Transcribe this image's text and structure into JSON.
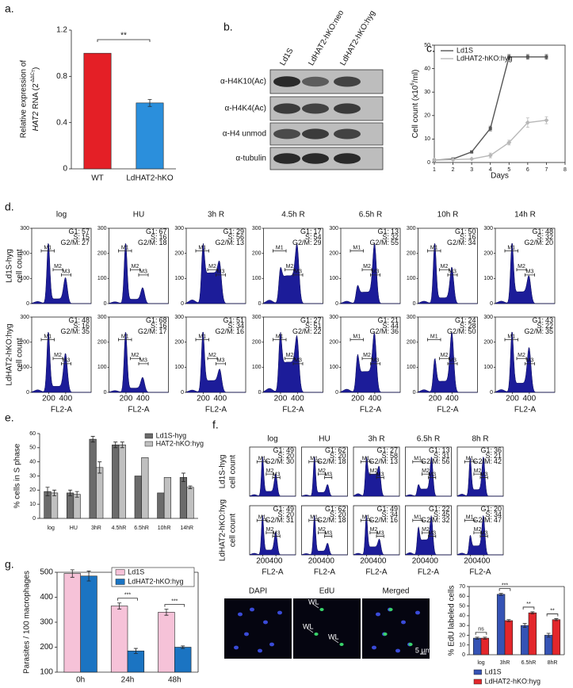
{
  "chart_data": [
    {
      "type": "bar",
      "label": "a.",
      "ylabel": [
        "Relative expression of",
        "HAT2",
        "RNA (2",
        "-ΔΔC",
        "T",
        ")"
      ],
      "categories": [
        "WT",
        "LdHAT2-hKO"
      ],
      "values": [
        1.0,
        0.57
      ],
      "errors": [
        0,
        0.03
      ],
      "colors": [
        "#e41f26",
        "#2b8fdc"
      ],
      "ylim": [
        0,
        1.2
      ],
      "yticks": [
        0,
        0.4,
        0.8,
        1.2
      ],
      "significance": "**"
    },
    {
      "type": "line",
      "label": "c.",
      "ylabel": [
        "Cell count (x10",
        "6",
        "/ml)"
      ],
      "xlabel": "Days",
      "x": [
        1,
        2,
        3,
        4,
        5,
        6,
        7
      ],
      "series": [
        {
          "name": "Ld1S",
          "color": "#555555",
          "values": [
            1,
            1.5,
            4.5,
            14.5,
            45,
            45,
            45
          ],
          "errors": [
            0,
            0,
            0,
            1,
            1,
            1,
            1
          ]
        },
        {
          "name": "LdHAT2-hKO:hyg",
          "color": "#b8b8b8",
          "values": [
            1,
            1.2,
            1.5,
            3,
            8.5,
            17,
            18
          ],
          "errors": [
            0,
            0,
            0,
            1,
            1,
            2,
            1.5
          ]
        }
      ],
      "xlim": [
        1,
        8
      ],
      "xticks": [
        1,
        2,
        3,
        4,
        5,
        6,
        7,
        8
      ],
      "ylim": [
        0,
        50
      ],
      "yticks": [
        0,
        10,
        20,
        30,
        40,
        50
      ]
    },
    {
      "type": "bar",
      "label": "e.",
      "ylabel": "% cells in S phase",
      "categories": [
        "log",
        "HU",
        "3hR",
        "4.5hR",
        "6.5hR",
        "10hR",
        "14hR"
      ],
      "series": [
        {
          "name": "Ld1S-hyg",
          "color": "#6b6b6b",
          "values": [
            19,
            18,
            56,
            52,
            30,
            18,
            29
          ],
          "errors": [
            3,
            2,
            2,
            2,
            0,
            0,
            3
          ]
        },
        {
          "name": "HAT2-hKO:hyg",
          "color": "#c0c0c0",
          "values": [
            18,
            17,
            36,
            52,
            43,
            29,
            22
          ],
          "errors": [
            2,
            2,
            4,
            2,
            0,
            0,
            1
          ]
        }
      ],
      "ylim": [
        0,
        60
      ],
      "yticks": [
        0,
        10,
        20,
        30,
        40,
        50,
        60
      ]
    },
    {
      "type": "bar",
      "label": "g.",
      "ylabel": "Parasites / 100 macrophages",
      "categories": [
        "0h",
        "24h",
        "48h"
      ],
      "series": [
        {
          "name": "Ld1S",
          "color": "#f6c2d8",
          "values": [
            495,
            365,
            340
          ],
          "errors": [
            15,
            12,
            12
          ]
        },
        {
          "name": "LdHAT2-hKO:hyg",
          "color": "#1b74c2",
          "values": [
            485,
            185,
            200
          ],
          "errors": [
            20,
            10,
            5
          ]
        }
      ],
      "ylim": [
        100,
        500
      ],
      "yticks": [
        100,
        200,
        300,
        400,
        500
      ],
      "significance": [
        null,
        "***",
        "***"
      ]
    },
    {
      "type": "bar",
      "ylabel": "% EdU labeled cells",
      "categories": [
        "log",
        "3hR",
        "6.5hR",
        "8hR"
      ],
      "series": [
        {
          "name": "Ld1S",
          "color": "#3553b5",
          "values": [
            17,
            62,
            30,
            20
          ],
          "errors": [
            1,
            1,
            2,
            2
          ]
        },
        {
          "name": "LdHAT2-hKO:hyg",
          "color": "#e3262b",
          "values": [
            17,
            35,
            43,
            36
          ],
          "errors": [
            1,
            1,
            1,
            1
          ]
        }
      ],
      "ylim": [
        0,
        70
      ],
      "yticks": [
        0,
        10,
        20,
        30,
        40,
        50,
        60,
        70
      ],
      "significance": [
        "ns",
        "***",
        "**",
        "**"
      ]
    }
  ],
  "blot": {
    "label": "b.",
    "lanes": [
      "Ld1S",
      "LdHAT2-hKO:neo",
      "LdHAT2-hKO:hyg"
    ],
    "antibodies": [
      "α-H4K10(Ac)",
      "α-H4K4(Ac)",
      "α-H4 unmod",
      "α-tubulin"
    ]
  },
  "flow_labels": {
    "phases": [
      "G1:",
      "S:",
      "G2/M:"
    ],
    "gates": [
      "M1",
      "M2",
      "M3"
    ],
    "xlabel": "FL2-A"
  },
  "flow_d": {
    "label": "d.",
    "columns": [
      "log",
      "HU",
      "3h R",
      "4.5h R",
      "6.5h R",
      "10h R",
      "14h R"
    ],
    "ylim": [
      0,
      300
    ],
    "yticks": [
      0,
      100,
      200,
      300
    ],
    "xlim": [
      0,
      700
    ],
    "xticks": [
      200,
      400
    ],
    "rows": [
      {
        "label": [
          "Ld1S-hyg",
          "cell count"
        ],
        "values": [
          [
            57,
            15,
            27
          ],
          [
            67,
            16,
            18
          ],
          [
            29,
            56,
            13
          ],
          [
            17,
            54,
            29
          ],
          [
            13,
            32,
            55
          ],
          [
            50,
            16,
            34
          ],
          [
            48,
            32,
            20
          ]
        ]
      },
      {
        "label": [
          "LdHAT2-hKO:hyg",
          "cell count"
        ],
        "values": [
          [
            48,
            16,
            35
          ],
          [
            68,
            16,
            17
          ],
          [
            51,
            34,
            16
          ],
          [
            27,
            51,
            22
          ],
          [
            21,
            44,
            36
          ],
          [
            24,
            28,
            50
          ],
          [
            43,
            22,
            35
          ]
        ]
      }
    ]
  },
  "flow_f": {
    "label": "f.",
    "columns": [
      "log",
      "HU",
      "3h R",
      "6.5h R",
      "8h R"
    ],
    "xlim": [
      0,
      700
    ],
    "xticks": [
      200,
      400
    ],
    "rows": [
      {
        "label": [
          "Ld1S-hyg",
          "cell count"
        ],
        "values": [
          [
            49,
            20,
            30
          ],
          [
            62,
            20,
            18
          ],
          [
            27,
            58,
            13
          ],
          [
            13,
            31,
            56
          ],
          [
            36,
            21,
            42
          ]
        ]
      },
      {
        "label": [
          "LdHAT2-hKO:hyg",
          "cell count"
        ],
        "values": [
          [
            49,
            20,
            31
          ],
          [
            62,
            20,
            18
          ],
          [
            49,
            34,
            16
          ],
          [
            22,
            45,
            32
          ],
          [
            20,
            34,
            47
          ]
        ]
      }
    ]
  },
  "microscopy": {
    "channels": [
      "DAPI",
      "EdU",
      "Merged"
    ],
    "marker": "WL",
    "scale": "5 µm"
  }
}
